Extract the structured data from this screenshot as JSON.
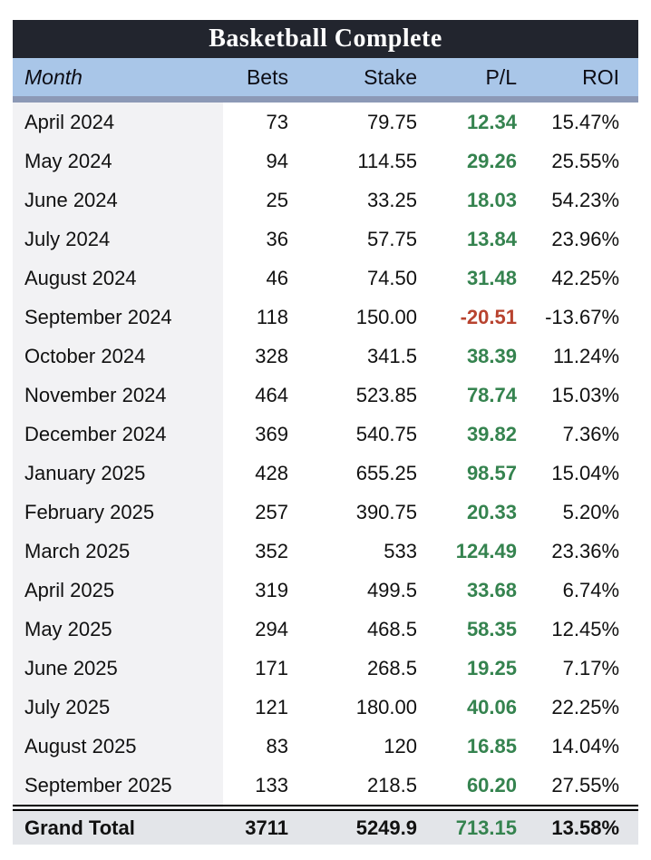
{
  "title": "Basketball Complete",
  "columns": {
    "month": "Month",
    "bets": "Bets",
    "stake": "Stake",
    "pl": "P/L",
    "roi": "ROI"
  },
  "rows": [
    {
      "month": "April 2024",
      "bets": "73",
      "stake": "79.75",
      "pl": "12.34",
      "roi": "15.47%"
    },
    {
      "month": "May 2024",
      "bets": "94",
      "stake": "114.55",
      "pl": "29.26",
      "roi": "25.55%"
    },
    {
      "month": "June 2024",
      "bets": "25",
      "stake": "33.25",
      "pl": "18.03",
      "roi": "54.23%"
    },
    {
      "month": "July 2024",
      "bets": "36",
      "stake": "57.75",
      "pl": "13.84",
      "roi": "23.96%"
    },
    {
      "month": "August 2024",
      "bets": "46",
      "stake": "74.50",
      "pl": "31.48",
      "roi": "42.25%"
    },
    {
      "month": "September 2024",
      "bets": "118",
      "stake": "150.00",
      "pl": "-20.51",
      "roi": "-13.67%"
    },
    {
      "month": "October 2024",
      "bets": "328",
      "stake": "341.5",
      "pl": "38.39",
      "roi": "11.24%"
    },
    {
      "month": "November 2024",
      "bets": "464",
      "stake": "523.85",
      "pl": "78.74",
      "roi": "15.03%"
    },
    {
      "month": "December 2024",
      "bets": "369",
      "stake": "540.75",
      "pl": "39.82",
      "roi": "7.36%"
    },
    {
      "month": "January 2025",
      "bets": "428",
      "stake": "655.25",
      "pl": "98.57",
      "roi": "15.04%"
    },
    {
      "month": "February 2025",
      "bets": "257",
      "stake": "390.75",
      "pl": "20.33",
      "roi": "5.20%"
    },
    {
      "month": "March 2025",
      "bets": "352",
      "stake": "533",
      "pl": "124.49",
      "roi": "23.36%"
    },
    {
      "month": "April 2025",
      "bets": "319",
      "stake": "499.5",
      "pl": "33.68",
      "roi": "6.74%"
    },
    {
      "month": "May 2025",
      "bets": "294",
      "stake": "468.5",
      "pl": "58.35",
      "roi": "12.45%"
    },
    {
      "month": "June 2025",
      "bets": "171",
      "stake": "268.5",
      "pl": "19.25",
      "roi": "7.17%"
    },
    {
      "month": "July 2025",
      "bets": "121",
      "stake": "180.00",
      "pl": "40.06",
      "roi": "22.25%"
    },
    {
      "month": "August 2025",
      "bets": "83",
      "stake": "120",
      "pl": "16.85",
      "roi": "14.04%"
    },
    {
      "month": "September 2025",
      "bets": "133",
      "stake": "218.5",
      "pl": "60.20",
      "roi": "27.55%"
    }
  ],
  "grand_total": {
    "month": "Grand Total",
    "bets": "3711",
    "stake": "5249.9",
    "pl": "713.15",
    "roi": "13.58%"
  },
  "colors": {
    "title_bg": "#22252e",
    "title_text": "#ffffff",
    "header_bg": "#a9c6e8",
    "separator": "#8c99b6",
    "month_col_bg": "#f2f2f4",
    "row_bg": "#ffffff",
    "total_bg": "#e3e5e9",
    "positive": "#35834f",
    "negative": "#b8432f",
    "text": "#111111"
  },
  "chart_data": {
    "type": "table",
    "title": "Basketball Complete",
    "columns": [
      "Month",
      "Bets",
      "Stake",
      "P/L",
      "ROI"
    ],
    "rows": [
      [
        "April 2024",
        73,
        79.75,
        12.34,
        "15.47%"
      ],
      [
        "May 2024",
        94,
        114.55,
        29.26,
        "25.55%"
      ],
      [
        "June 2024",
        25,
        33.25,
        18.03,
        "54.23%"
      ],
      [
        "July 2024",
        36,
        57.75,
        13.84,
        "23.96%"
      ],
      [
        "August 2024",
        46,
        74.5,
        31.48,
        "42.25%"
      ],
      [
        "September 2024",
        118,
        150.0,
        -20.51,
        "-13.67%"
      ],
      [
        "October 2024",
        328,
        341.5,
        38.39,
        "11.24%"
      ],
      [
        "November 2024",
        464,
        523.85,
        78.74,
        "15.03%"
      ],
      [
        "December 2024",
        369,
        540.75,
        39.82,
        "7.36%"
      ],
      [
        "January 2025",
        428,
        655.25,
        98.57,
        "15.04%"
      ],
      [
        "February 2025",
        257,
        390.75,
        20.33,
        "5.20%"
      ],
      [
        "March 2025",
        352,
        533,
        124.49,
        "23.36%"
      ],
      [
        "April 2025",
        319,
        499.5,
        33.68,
        "6.74%"
      ],
      [
        "May 2025",
        294,
        468.5,
        58.35,
        "12.45%"
      ],
      [
        "June 2025",
        171,
        268.5,
        19.25,
        "7.17%"
      ],
      [
        "July 2025",
        121,
        180.0,
        40.06,
        "22.25%"
      ],
      [
        "August 2025",
        83,
        120,
        16.85,
        "14.04%"
      ],
      [
        "September 2025",
        133,
        218.5,
        60.2,
        "27.55%"
      ]
    ],
    "grand_total": [
      "Grand Total",
      3711,
      5249.9,
      713.15,
      "13.58%"
    ]
  }
}
